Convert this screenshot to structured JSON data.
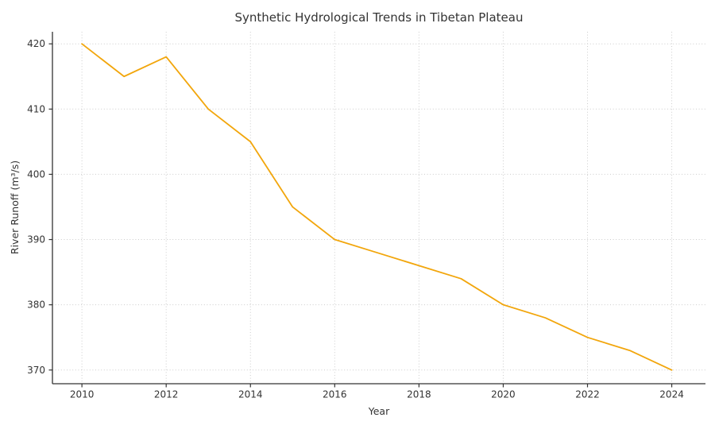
{
  "chart_data": {
    "type": "line",
    "title": "Synthetic Hydrological Trends in Tibetan Plateau",
    "xlabel": "Year",
    "ylabel": "River Runoff (m³/s)",
    "x": [
      2010,
      2011,
      2012,
      2013,
      2014,
      2015,
      2016,
      2017,
      2018,
      2019,
      2020,
      2021,
      2022,
      2023,
      2024
    ],
    "series": [
      {
        "name": "River Runoff",
        "values": [
          420,
          415,
          418,
          410,
          405,
          395,
          390,
          388,
          386,
          384,
          380,
          378,
          375,
          373,
          370
        ],
        "color": "#F2A60C"
      }
    ],
    "xlim": [
      2009.3,
      2024.8
    ],
    "ylim": [
      367.9,
      421.85
    ],
    "xticks": [
      2010,
      2012,
      2014,
      2016,
      2018,
      2020,
      2022,
      2024
    ],
    "yticks": [
      370,
      380,
      390,
      400,
      410,
      420
    ],
    "grid": true,
    "grid_color": "#cccccc",
    "grid_style": "dotted",
    "axis_color": "#333333",
    "text_color": "#333333",
    "background": "#ffffff",
    "legend_position": "none"
  }
}
